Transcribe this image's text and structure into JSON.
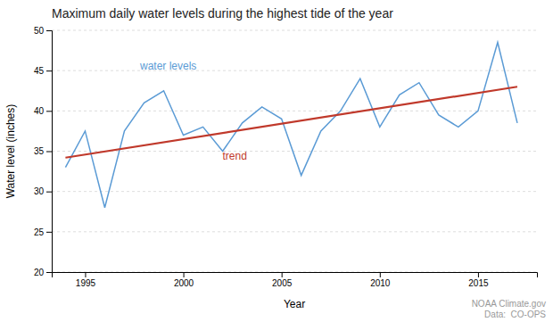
{
  "chart_data": {
    "type": "line",
    "title": "Maximum daily water levels during the highest tide of the year",
    "x_label": "Year",
    "y_label": "Water level (inches)",
    "x": [
      1994,
      1995,
      1996,
      1997,
      1998,
      1999,
      2000,
      2001,
      2002,
      2003,
      2004,
      2005,
      2006,
      2007,
      2008,
      2009,
      2010,
      2011,
      2012,
      2013,
      2014,
      2015,
      2016,
      2017
    ],
    "series": [
      {
        "name": "water levels",
        "color": "#5b9bd5",
        "values": [
          33.0,
          37.5,
          28.0,
          37.5,
          41.0,
          42.5,
          37.0,
          38.0,
          35.0,
          38.5,
          40.5,
          39.0,
          32.0,
          37.5,
          40.0,
          44.0,
          38.0,
          42.0,
          43.5,
          39.5,
          38.0,
          40.0,
          48.5,
          38.5
        ]
      },
      {
        "name": "trend",
        "color": "#c0392b",
        "x": [
          1994,
          2017
        ],
        "values": [
          34.2,
          43.0
        ]
      }
    ],
    "xlim": [
      1993.3,
      2018.0
    ],
    "xticks": [
      1995,
      2000,
      2005,
      2010,
      2015
    ],
    "ylim": [
      20,
      50
    ],
    "yticks": [
      20,
      25,
      30,
      35,
      40,
      45,
      50
    ],
    "grid": true,
    "annotations": [
      "NOAA Climate.gov",
      "Data:  CO-OPS"
    ]
  }
}
